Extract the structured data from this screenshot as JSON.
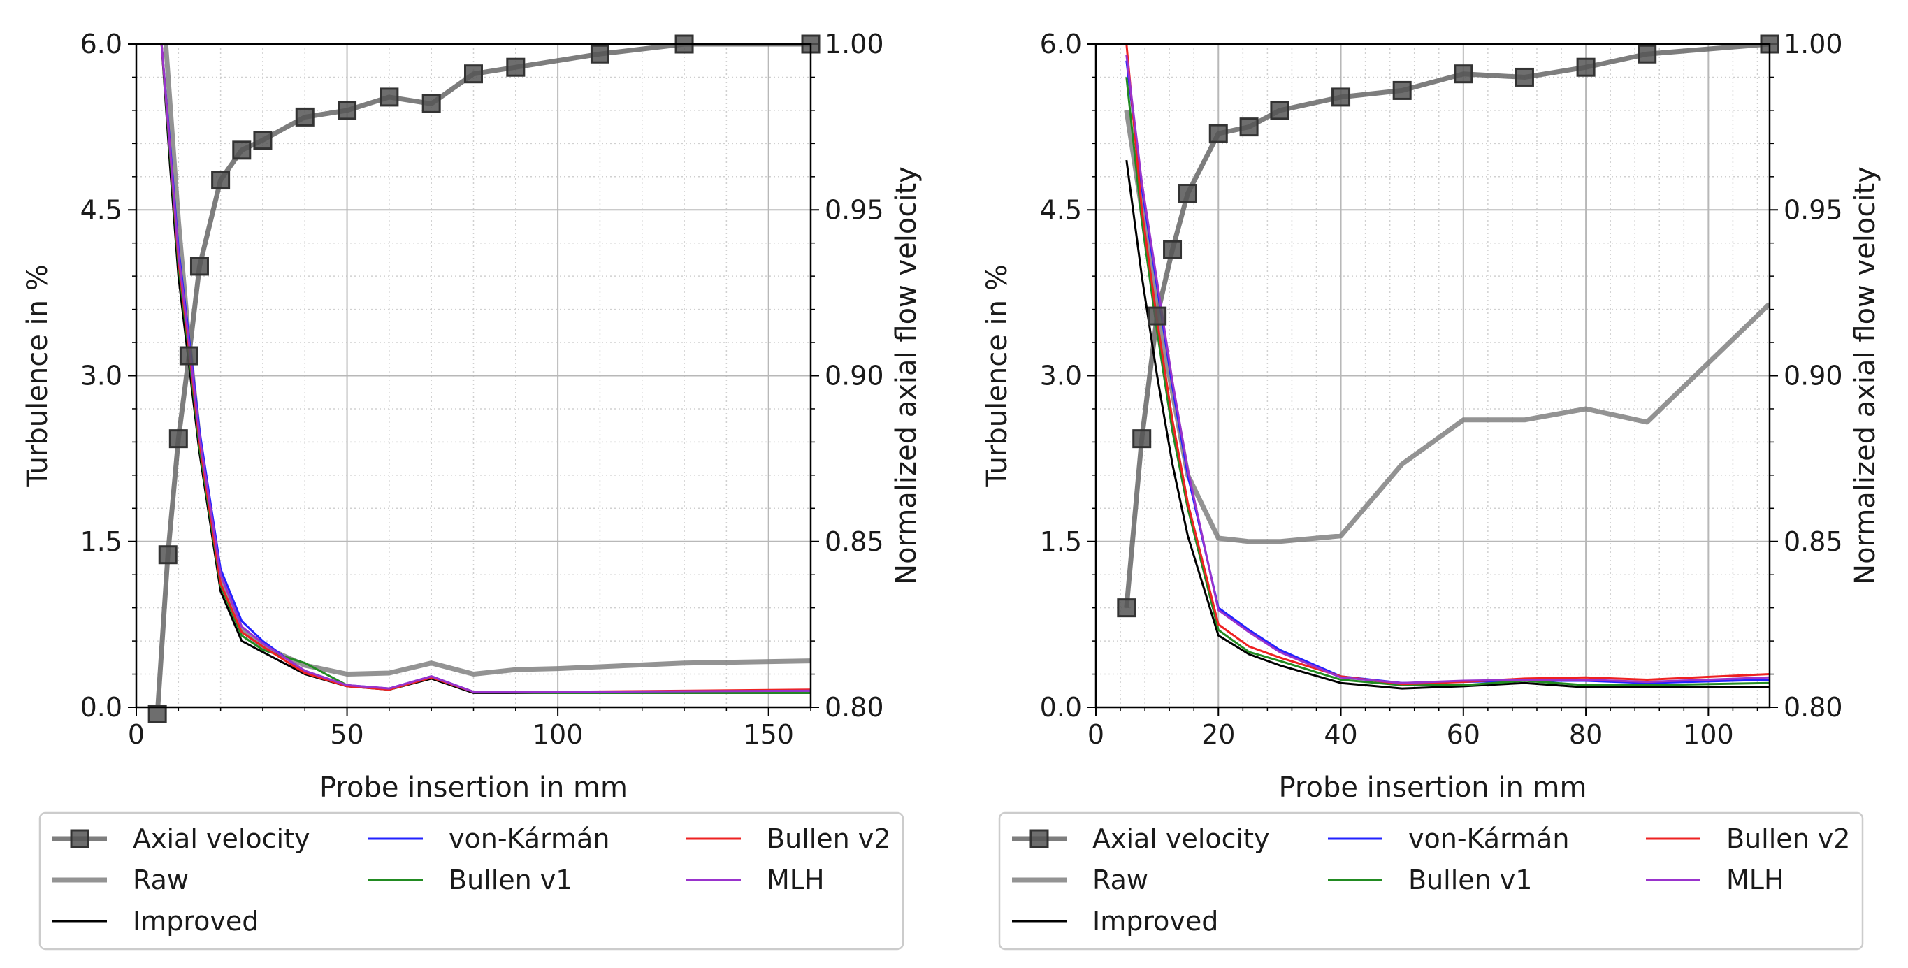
{
  "chart_data": [
    {
      "type": "line",
      "xlabel": "Probe insertion in mm",
      "ylabel": "Turbulence in %",
      "y2label": "Normalized axial flow velocity",
      "xlim": [
        0,
        160
      ],
      "ylim": [
        0,
        6
      ],
      "y2lim": [
        0.8,
        1.0
      ],
      "xticks": [
        0,
        50,
        100,
        150
      ],
      "yticks": [
        0.0,
        1.5,
        3.0,
        4.5,
        6.0
      ],
      "y2ticks": [
        0.8,
        0.85,
        0.9,
        0.95,
        1.0
      ],
      "xtick_labels": [
        "0",
        "50",
        "100",
        "150"
      ],
      "ytick_labels": [
        "0.0",
        "1.5",
        "3.0",
        "4.5",
        "6.0"
      ],
      "y2tick_labels": [
        "0.80",
        "0.85",
        "0.90",
        "0.95",
        "1.00"
      ],
      "grid": true,
      "legend_position": "bottom",
      "series": [
        {
          "name": "Axial velocity",
          "axis": "right",
          "color": "#666666",
          "marker": "square",
          "x": [
            5,
            7.5,
            10,
            12.5,
            15,
            20,
            25,
            30,
            40,
            50,
            60,
            70,
            80,
            90,
            110,
            130,
            160
          ],
          "y": [
            0.798,
            0.846,
            0.881,
            0.906,
            0.933,
            0.959,
            0.968,
            0.971,
            0.978,
            0.98,
            0.984,
            0.982,
            0.991,
            0.993,
            0.997,
            1.0,
            1.0
          ]
        },
        {
          "name": "Raw",
          "axis": "left",
          "color": "#808080",
          "x": [
            7,
            10,
            12.5,
            15,
            20,
            25,
            30,
            40,
            50,
            60,
            70,
            80,
            90,
            100,
            130,
            160
          ],
          "y": [
            6.0,
            4.4,
            3.3,
            2.4,
            1.15,
            0.7,
            0.55,
            0.38,
            0.3,
            0.31,
            0.4,
            0.3,
            0.34,
            0.35,
            0.4,
            0.42
          ]
        },
        {
          "name": "Improved",
          "axis": "left",
          "color": "#000000",
          "x": [
            6,
            8,
            10,
            12.5,
            15,
            20,
            25,
            30,
            40,
            50,
            60,
            70,
            80,
            100,
            160
          ],
          "y": [
            6.0,
            4.9,
            3.9,
            3.1,
            2.3,
            1.05,
            0.6,
            0.5,
            0.3,
            0.19,
            0.16,
            0.26,
            0.13,
            0.13,
            0.13
          ]
        },
        {
          "name": "von-Kármán",
          "axis": "left",
          "color": "#2222ff",
          "x": [
            6,
            8,
            10,
            12.5,
            15,
            20,
            25,
            30,
            40,
            50,
            60,
            70,
            80,
            100,
            160
          ],
          "y": [
            6.0,
            5.1,
            4.15,
            3.35,
            2.5,
            1.25,
            0.78,
            0.6,
            0.32,
            0.2,
            0.17,
            0.28,
            0.14,
            0.14,
            0.15
          ]
        },
        {
          "name": "Bullen v1",
          "axis": "left",
          "color": "#228b22",
          "x": [
            6,
            8,
            10,
            12.5,
            15,
            20,
            25,
            30,
            40,
            50,
            60,
            70,
            80,
            100,
            160
          ],
          "y": [
            6.0,
            5.0,
            4.0,
            3.2,
            2.35,
            1.1,
            0.65,
            0.52,
            0.4,
            0.2,
            0.16,
            0.27,
            0.14,
            0.13,
            0.13
          ]
        },
        {
          "name": "Bullen v2",
          "axis": "left",
          "color": "#ee2222",
          "x": [
            6,
            8,
            10,
            12.5,
            15,
            20,
            25,
            30,
            40,
            50,
            60,
            70,
            80,
            100,
            160
          ],
          "y": [
            6.0,
            5.05,
            4.05,
            3.25,
            2.4,
            1.12,
            0.68,
            0.55,
            0.31,
            0.19,
            0.16,
            0.27,
            0.14,
            0.14,
            0.16
          ]
        },
        {
          "name": "MLH",
          "axis": "left",
          "color": "#9933cc",
          "x": [
            6,
            8,
            10,
            12.5,
            15,
            20,
            25,
            30,
            40,
            50,
            60,
            70,
            80,
            100,
            160
          ],
          "y": [
            6.0,
            5.05,
            4.1,
            3.3,
            2.45,
            1.2,
            0.73,
            0.58,
            0.33,
            0.2,
            0.17,
            0.28,
            0.14,
            0.14,
            0.15
          ]
        }
      ]
    },
    {
      "type": "line",
      "xlabel": "Probe insertion in mm",
      "ylabel": "Turbulence in %",
      "y2label": "Normalized axial flow velocity",
      "xlim": [
        0,
        110
      ],
      "ylim": [
        0,
        6
      ],
      "y2lim": [
        0.8,
        1.0
      ],
      "xticks": [
        0,
        20,
        40,
        60,
        80,
        100
      ],
      "yticks": [
        0.0,
        1.5,
        3.0,
        4.5,
        6.0
      ],
      "y2ticks": [
        0.8,
        0.85,
        0.9,
        0.95,
        1.0
      ],
      "xtick_labels": [
        "0",
        "20",
        "40",
        "60",
        "80",
        "100"
      ],
      "ytick_labels": [
        "0.0",
        "1.5",
        "3.0",
        "4.5",
        "6.0"
      ],
      "y2tick_labels": [
        "0.80",
        "0.85",
        "0.90",
        "0.95",
        "1.00"
      ],
      "grid": true,
      "legend_position": "bottom",
      "series": [
        {
          "name": "Axial velocity",
          "axis": "right",
          "color": "#666666",
          "marker": "square",
          "x": [
            5,
            7.5,
            10,
            12.5,
            15,
            20,
            25,
            30,
            40,
            50,
            60,
            70,
            80,
            90,
            110
          ],
          "y": [
            0.83,
            0.881,
            0.918,
            0.938,
            0.955,
            0.973,
            0.975,
            0.98,
            0.984,
            0.986,
            0.991,
            0.99,
            0.993,
            0.997,
            1.0
          ]
        },
        {
          "name": "Raw",
          "axis": "left",
          "color": "#808080",
          "x": [
            5,
            10,
            15,
            20,
            25,
            30,
            40,
            50,
            60,
            70,
            80,
            90,
            110
          ],
          "y": [
            5.4,
            3.6,
            2.1,
            1.53,
            1.5,
            1.5,
            1.55,
            2.2,
            2.6,
            2.6,
            2.7,
            2.58,
            3.65
          ]
        },
        {
          "name": "Improved",
          "axis": "left",
          "color": "#000000",
          "x": [
            5,
            7.5,
            10,
            12.5,
            15,
            20,
            25,
            30,
            40,
            50,
            60,
            70,
            80,
            90,
            110
          ],
          "y": [
            4.95,
            3.9,
            3.0,
            2.2,
            1.55,
            0.65,
            0.48,
            0.38,
            0.22,
            0.17,
            0.19,
            0.22,
            0.18,
            0.18,
            0.18
          ]
        },
        {
          "name": "von-Kármán",
          "axis": "left",
          "color": "#2222ff",
          "x": [
            5,
            7.5,
            10,
            12.5,
            15,
            20,
            25,
            30,
            40,
            50,
            60,
            70,
            80,
            90,
            110
          ],
          "y": [
            5.85,
            4.7,
            3.8,
            2.9,
            2.1,
            0.9,
            0.7,
            0.52,
            0.28,
            0.22,
            0.23,
            0.24,
            0.24,
            0.22,
            0.25
          ]
        },
        {
          "name": "Bullen v1",
          "axis": "left",
          "color": "#228b22",
          "x": [
            5,
            7.5,
            10,
            12.5,
            15,
            20,
            25,
            30,
            40,
            50,
            60,
            70,
            80,
            90,
            110
          ],
          "y": [
            5.7,
            4.4,
            3.4,
            2.5,
            1.8,
            0.7,
            0.5,
            0.42,
            0.25,
            0.2,
            0.2,
            0.24,
            0.2,
            0.2,
            0.22
          ]
        },
        {
          "name": "Bullen v2",
          "axis": "left",
          "color": "#ee2222",
          "x": [
            5,
            7.5,
            10,
            12.5,
            15,
            20,
            25,
            30,
            40,
            50,
            60,
            70,
            80,
            90,
            110
          ],
          "y": [
            6.0,
            4.5,
            3.5,
            2.6,
            1.85,
            0.75,
            0.55,
            0.45,
            0.28,
            0.21,
            0.23,
            0.26,
            0.27,
            0.25,
            0.3
          ]
        },
        {
          "name": "MLH",
          "axis": "left",
          "color": "#9933cc",
          "x": [
            5,
            7.5,
            10,
            12.5,
            15,
            20,
            25,
            30,
            40,
            50,
            60,
            70,
            80,
            90,
            110
          ],
          "y": [
            5.9,
            4.75,
            3.85,
            2.95,
            2.15,
            0.88,
            0.68,
            0.5,
            0.27,
            0.22,
            0.24,
            0.25,
            0.25,
            0.23,
            0.27
          ]
        }
      ]
    }
  ],
  "legend": {
    "columns": [
      [
        "Axial velocity",
        "Raw",
        "Improved"
      ],
      [
        "von-Kármán",
        "Bullen v1"
      ],
      [
        "Bullen v2",
        "MLH"
      ]
    ]
  }
}
